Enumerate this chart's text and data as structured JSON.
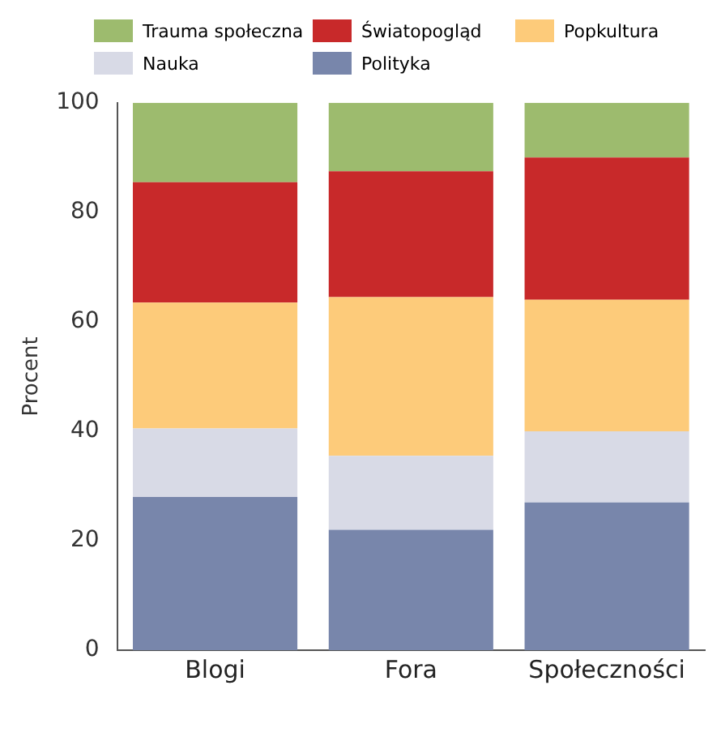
{
  "chart_data": {
    "type": "bar",
    "stacked": true,
    "ylabel": "Procent",
    "categories": [
      "Blogi",
      "Fora",
      "Społeczności"
    ],
    "series": [
      {
        "name": "Polityka",
        "color": "#7886ab",
        "values": [
          28,
          22,
          27
        ]
      },
      {
        "name": "Nauka",
        "color": "#d8dae6",
        "values": [
          12.5,
          13.5,
          13
        ]
      },
      {
        "name": "Popkultura",
        "color": "#fdcb7a",
        "values": [
          23,
          29,
          24
        ]
      },
      {
        "name": "Światopogląd",
        "color": "#c8292a",
        "values": [
          22,
          23,
          26
        ]
      },
      {
        "name": "Trauma społeczna",
        "color": "#9dbb6e",
        "values": [
          14.5,
          12.5,
          10
        ]
      }
    ],
    "ylim": [
      0,
      100
    ],
    "yticks": [
      0,
      20,
      40,
      60,
      80,
      100
    ],
    "grid": false,
    "legend": "top"
  }
}
